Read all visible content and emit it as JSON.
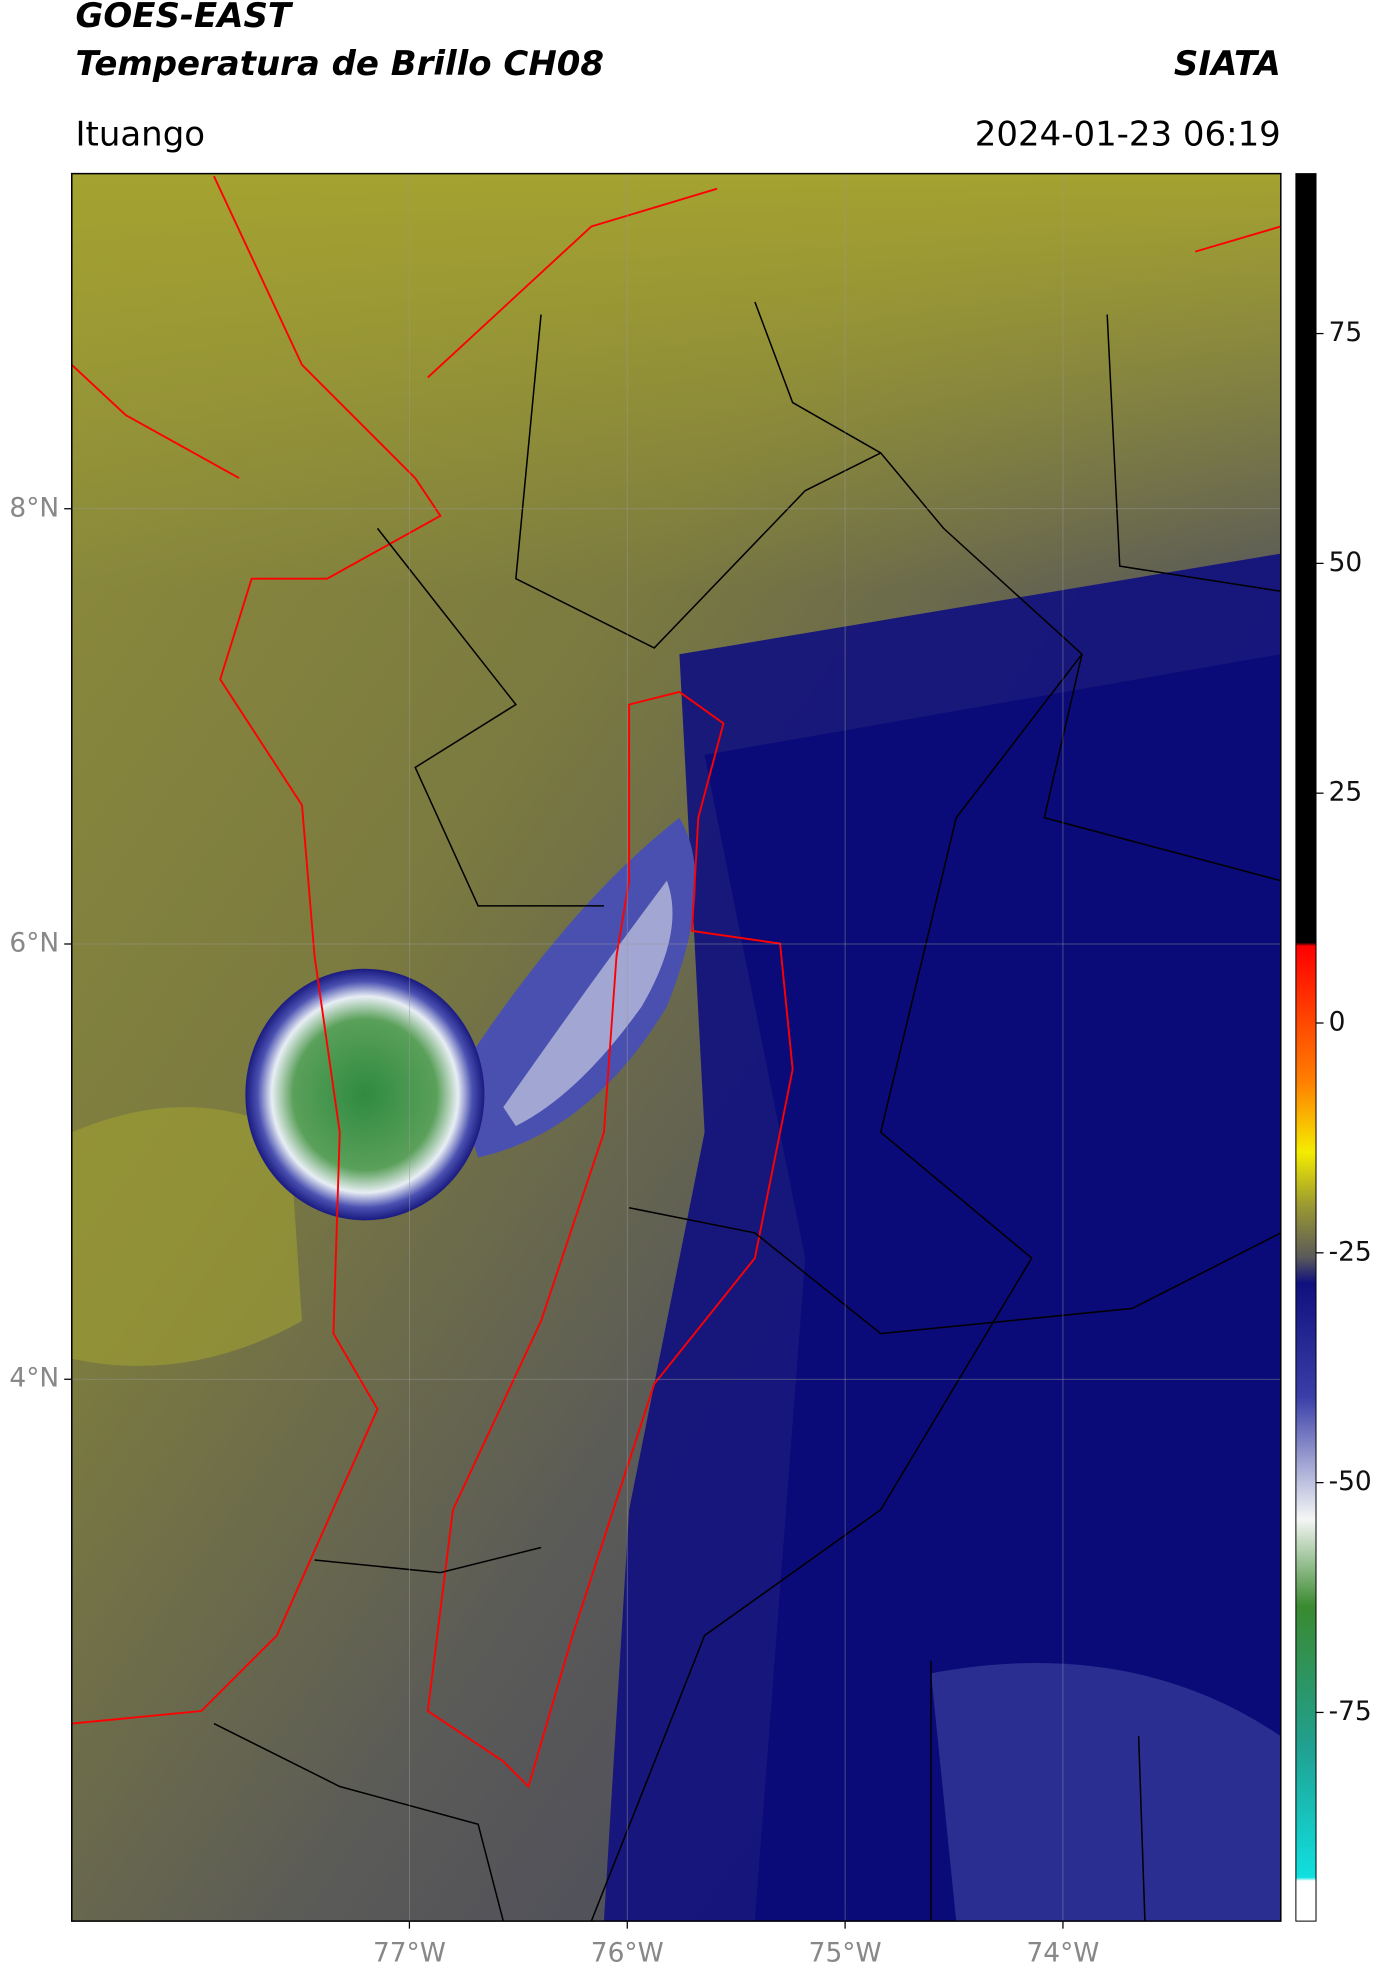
{
  "title": "GOES-EAST",
  "subtitle": "Temperatura de Brillo CH08",
  "brand": "SIATA",
  "location": "Ituango",
  "datetime": "2024-01-23 06:19",
  "map": {
    "xlim": [
      -78.55,
      -73.0
    ],
    "ylim": [
      1.51,
      9.54
    ],
    "xticks": [
      {
        "value": -77,
        "label": "77°W"
      },
      {
        "value": -76,
        "label": "76°W"
      },
      {
        "value": -75,
        "label": "75°W"
      },
      {
        "value": -74,
        "label": "74°W"
      }
    ],
    "yticks": [
      {
        "value": 8,
        "label": "8°N"
      },
      {
        "value": 6,
        "label": "6°N"
      },
      {
        "value": 4,
        "label": "4°N"
      }
    ]
  },
  "colorbar": {
    "lim": [
      -97.7,
      92.4
    ],
    "ticks": [
      75,
      50,
      25,
      0,
      -25,
      -50,
      -75
    ]
  }
}
